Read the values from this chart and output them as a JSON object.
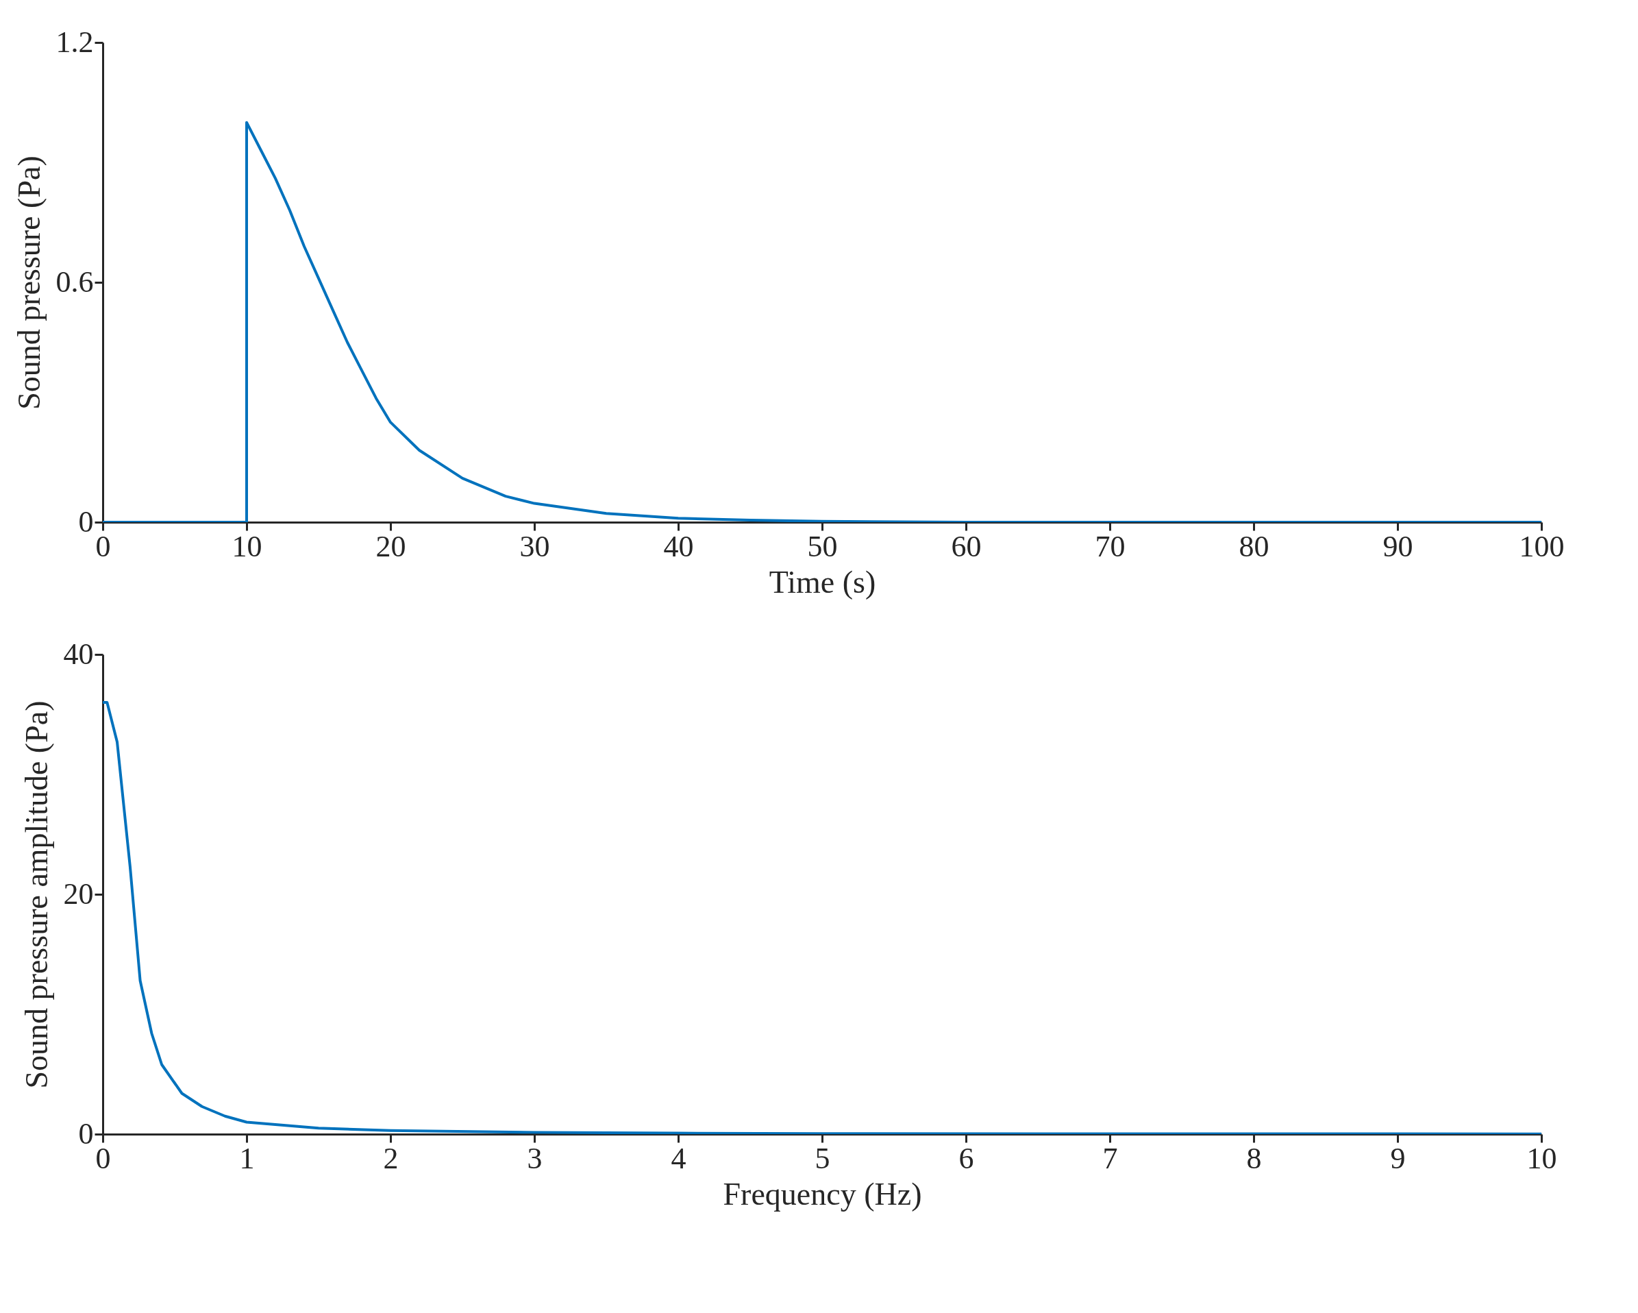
{
  "chart_data": [
    {
      "type": "line",
      "xlabel": "Time (s)",
      "ylabel": "Sound pressure (Pa)",
      "xlim": [
        0,
        100
      ],
      "ylim": [
        0,
        1.2
      ],
      "xticks": [
        0,
        10,
        20,
        30,
        40,
        50,
        60,
        70,
        80,
        90,
        100
      ],
      "yticks": [
        0,
        0.6,
        1.2
      ],
      "grid": false,
      "marker": "none",
      "line_style": "solid",
      "series": [
        {
          "color": "#0072bd",
          "x": [
            0,
            10,
            10,
            11,
            12,
            13,
            14,
            15,
            16,
            17,
            18,
            19,
            20,
            22,
            25,
            28,
            30,
            35,
            40,
            45,
            50,
            60,
            100
          ],
          "values": [
            0,
            0,
            1.0,
            0.93,
            0.86,
            0.78,
            0.69,
            0.61,
            0.53,
            0.45,
            0.38,
            0.31,
            0.25,
            0.18,
            0.11,
            0.065,
            0.047,
            0.022,
            0.01,
            0.005,
            0.002,
            0,
            0
          ]
        }
      ]
    },
    {
      "type": "line",
      "xlabel": "Frequency (Hz)",
      "ylabel": "Sound pressure amplitude (Pa)",
      "xlim": [
        0,
        10
      ],
      "ylim": [
        0,
        40
      ],
      "xticks": [
        0,
        1,
        2,
        3,
        4,
        5,
        6,
        7,
        8,
        9,
        10
      ],
      "yticks": [
        0,
        20,
        40
      ],
      "grid": false,
      "marker": "none",
      "line_style": "solid",
      "series": [
        {
          "color": "#0072bd",
          "x": [
            0,
            0.03,
            0.1,
            0.19,
            0.26,
            0.34,
            0.41,
            0.55,
            0.69,
            0.85,
            1,
            1.5,
            2,
            3,
            4,
            5,
            7,
            10
          ],
          "values": [
            36,
            36,
            32.7,
            22.3,
            12.8,
            8.4,
            5.8,
            3.4,
            2.3,
            1.5,
            1.0,
            0.5,
            0.3,
            0.15,
            0.08,
            0.05,
            0.03,
            0.02
          ]
        }
      ]
    }
  ]
}
